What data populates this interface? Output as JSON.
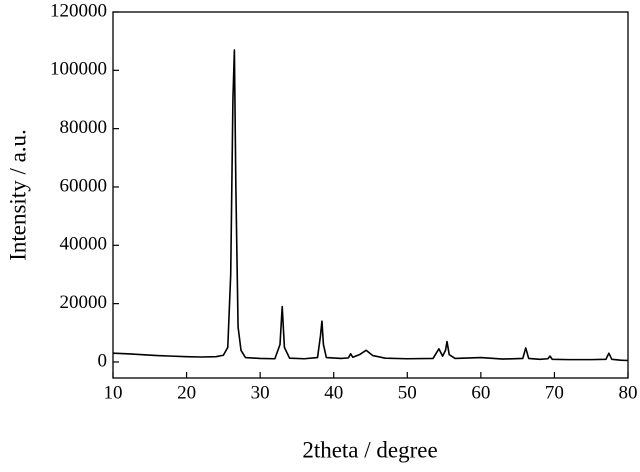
{
  "chart_data": {
    "type": "line",
    "xlabel": "2theta / degree",
    "ylabel": "Intensity / a.u.",
    "x": [
      10,
      12,
      14,
      16,
      18,
      20,
      22,
      24,
      25,
      25.6,
      26,
      26.3,
      26.5,
      26.7,
      27,
      27.4,
      28,
      30,
      32,
      32.7,
      33,
      33.3,
      34,
      36,
      37.8,
      38.2,
      38.4,
      38.6,
      39,
      41,
      42,
      42.3,
      42.6,
      43.5,
      44.4,
      45.3,
      47,
      50,
      53.5,
      54.3,
      54.8,
      55.2,
      55.4,
      55.7,
      56.5,
      60,
      63,
      65.7,
      66.1,
      66.5,
      68,
      69.1,
      69.4,
      69.7,
      72,
      75,
      77,
      77.4,
      77.8,
      79,
      80
    ],
    "series": [
      {
        "color": "#000000",
        "values": [
          3000,
          2800,
          2500,
          2200,
          2000,
          1800,
          1700,
          1800,
          2300,
          5000,
          30000,
          90000,
          107000,
          60000,
          12000,
          4000,
          1500,
          1200,
          1100,
          6000,
          19000,
          5000,
          1300,
          1100,
          1500,
          9000,
          14000,
          6000,
          1500,
          1200,
          1400,
          2800,
          1600,
          2500,
          4000,
          2200,
          1300,
          1100,
          1200,
          4500,
          2000,
          4000,
          7000,
          2500,
          1200,
          1500,
          1000,
          1200,
          4800,
          1200,
          900,
          1100,
          2000,
          900,
          800,
          800,
          900,
          3000,
          900,
          600,
          500
        ]
      }
    ],
    "xlim": [
      10,
      80
    ],
    "xticks": [
      10,
      20,
      30,
      40,
      50,
      60,
      70,
      80
    ],
    "ylim": [
      -5500,
      120000
    ],
    "yticks": [
      0,
      20000,
      40000,
      60000,
      80000,
      100000,
      120000
    ]
  }
}
